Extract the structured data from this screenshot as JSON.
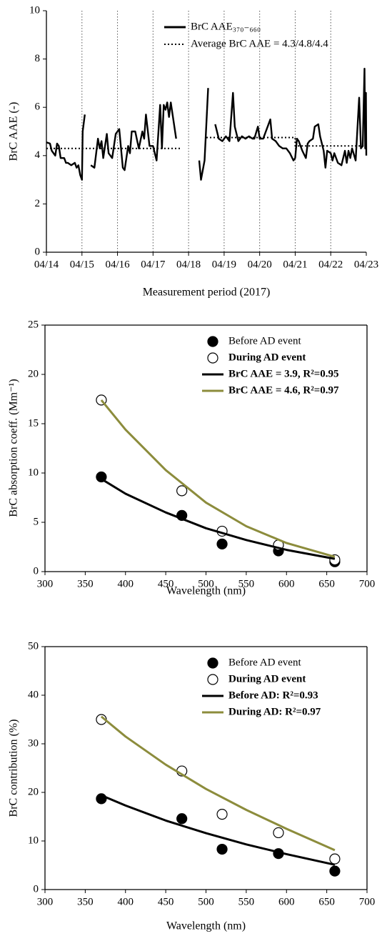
{
  "chart_data": [
    {
      "type": "line",
      "xlabel": "Measurement period (2017)",
      "ylabel": "BrC AAE (-)",
      "xlim": [
        0,
        9
      ],
      "ylim": [
        0,
        10
      ],
      "xticks": [
        {
          "value": 0,
          "label": "04/14"
        },
        {
          "value": 1,
          "label": "04/15"
        },
        {
          "value": 2,
          "label": "04/16"
        },
        {
          "value": 3,
          "label": "04/17"
        },
        {
          "value": 4,
          "label": "04/18"
        },
        {
          "value": 5,
          "label": "04/19"
        },
        {
          "value": 6,
          "label": "04/20"
        },
        {
          "value": 7,
          "label": "04/21"
        },
        {
          "value": 8,
          "label": "04/22"
        },
        {
          "value": 9,
          "label": "04/23"
        }
      ],
      "yticks": [
        0,
        2,
        4,
        6,
        8,
        10
      ],
      "vgrid": true,
      "box": false,
      "legend": "upper center",
      "series": [
        {
          "name": "BrC AAE₃₇₀₋₆₆₀",
          "color": "#000000",
          "kind": "line",
          "dash": "solid",
          "x": [
            0,
            0.1,
            0.15,
            0.25,
            0.3,
            0.35,
            0.4,
            0.5,
            0.55,
            0.6,
            0.7,
            0.8,
            0.85,
            0.9,
            0.95,
            1.0,
            1.02,
            1.08,
            null,
            1.25,
            1.35,
            1.45,
            1.5,
            1.55,
            1.6,
            1.7,
            1.75,
            1.85,
            1.95,
            2.05,
            2.1,
            2.15,
            2.2,
            2.3,
            2.35,
            2.4,
            2.5,
            2.6,
            2.7,
            2.75,
            2.8,
            2.9,
            3.0,
            3.1,
            3.2,
            3.25,
            3.3,
            3.35,
            3.4,
            3.45,
            3.5,
            3.55,
            3.65,
            null,
            4.3,
            4.35,
            4.45,
            4.55,
            null,
            4.75,
            4.85,
            4.95,
            5.05,
            5.1,
            5.15,
            5.25,
            5.3,
            5.4,
            5.5,
            5.6,
            5.7,
            5.8,
            5.85,
            5.95,
            6.0,
            6.1,
            6.2,
            6.3,
            6.35,
            6.45,
            6.55,
            6.65,
            6.75,
            6.85,
            6.95,
            7.0,
            7.05,
            7.1,
            7.2,
            7.3,
            7.35,
            7.4,
            7.5,
            7.55,
            7.65,
            7.7,
            7.8,
            7.85,
            7.9,
            8.0,
            8.05,
            8.1,
            8.2,
            8.3,
            8.4,
            8.45,
            8.5,
            8.55,
            8.6,
            8.7,
            8.8,
            8.85,
            8.9,
            8.95,
            8.97,
            8.99,
            9.0
          ],
          "values": [
            4.55,
            4.5,
            4.2,
            4.0,
            4.5,
            4.4,
            3.9,
            3.9,
            3.7,
            3.7,
            3.6,
            3.7,
            3.5,
            3.6,
            3.2,
            3.0,
            5.0,
            5.7,
            null,
            3.6,
            3.5,
            4.7,
            4.3,
            4.6,
            3.9,
            4.9,
            4.1,
            3.9,
            4.9,
            5.1,
            4.3,
            3.5,
            3.4,
            4.4,
            4.1,
            5.0,
            5.0,
            4.3,
            5.0,
            4.7,
            5.7,
            4.4,
            4.4,
            3.8,
            6.1,
            4.3,
            6.1,
            5.9,
            6.2,
            5.6,
            6.2,
            5.7,
            4.7,
            null,
            3.8,
            3.0,
            3.8,
            6.8,
            null,
            5.3,
            4.7,
            4.6,
            4.8,
            4.7,
            4.6,
            6.6,
            5.2,
            4.6,
            4.8,
            4.7,
            4.8,
            4.7,
            4.7,
            5.2,
            4.7,
            4.7,
            5.1,
            5.5,
            4.7,
            4.6,
            4.4,
            4.3,
            4.3,
            4.1,
            3.8,
            3.9,
            4.7,
            4.6,
            4.2,
            3.9,
            4.5,
            4.6,
            4.7,
            5.2,
            5.3,
            4.8,
            4.2,
            3.5,
            4.2,
            4.1,
            3.8,
            4.1,
            3.7,
            3.6,
            4.2,
            3.7,
            4.2,
            3.9,
            4.3,
            3.8,
            6.4,
            4.3,
            4.4,
            7.6,
            4.3,
            6.6,
            4.0
          ]
        },
        {
          "name": "Average BrC AAE = 4.3/4.8/4.4",
          "color": "#000000",
          "kind": "line",
          "dash": "dotted",
          "x": [
            0,
            3.8,
            null,
            4.5,
            7.0,
            7.0,
            9
          ],
          "values": [
            4.3,
            4.3,
            null,
            4.75,
            4.75,
            4.4,
            4.4
          ]
        }
      ]
    },
    {
      "type": "scatter",
      "xlabel": "Wavelength (nm)",
      "ylabel": "BrC absorption coeff. (Mm⁻¹)",
      "xlim": [
        300,
        700
      ],
      "ylim": [
        0,
        25
      ],
      "xticks": [
        300,
        350,
        400,
        450,
        500,
        550,
        600,
        650,
        700
      ],
      "yticks": [
        0,
        5,
        10,
        15,
        20,
        25
      ],
      "vgrid": false,
      "box": true,
      "legend": "upper right",
      "series": [
        {
          "name": "Before AD event",
          "color": "#000000",
          "kind": "marker",
          "fill": "filled",
          "x": [
            370,
            470,
            520,
            590,
            660
          ],
          "values": [
            9.6,
            5.7,
            2.8,
            2.1,
            1.0
          ]
        },
        {
          "name": "During AD event",
          "color": "#8c8c3c",
          "kind": "marker",
          "fill": "open",
          "x": [
            370,
            470,
            520,
            590,
            660
          ],
          "values": [
            17.4,
            8.2,
            4.1,
            2.7,
            1.2
          ]
        },
        {
          "name": "BrC AAE = 3.9, R²=0.95",
          "color": "#000000",
          "kind": "line",
          "dash": "solid",
          "x": [
            370,
            400,
            450,
            500,
            550,
            600,
            660
          ],
          "values": [
            9.4,
            7.9,
            6.0,
            4.4,
            3.2,
            2.2,
            1.3
          ]
        },
        {
          "name": "BrC AAE = 4.6, R²=0.97",
          "color": "#8c8c3c",
          "kind": "line",
          "dash": "solid",
          "x": [
            370,
            400,
            450,
            500,
            550,
            600,
            660
          ],
          "values": [
            17.4,
            14.4,
            10.3,
            7.0,
            4.6,
            2.9,
            1.5
          ]
        }
      ]
    },
    {
      "type": "scatter",
      "xlabel": "Wavelength (nm)",
      "ylabel": "BrC contribution (%)",
      "xlim": [
        300,
        700
      ],
      "ylim": [
        0,
        50
      ],
      "xticks": [
        300,
        350,
        400,
        450,
        500,
        550,
        600,
        650,
        700
      ],
      "yticks": [
        0,
        10,
        20,
        30,
        40,
        50
      ],
      "vgrid": false,
      "box": true,
      "legend": "upper right",
      "series": [
        {
          "name": "Before AD event",
          "color": "#000000",
          "kind": "marker",
          "fill": "filled",
          "x": [
            370,
            470,
            520,
            590,
            660
          ],
          "values": [
            18.7,
            14.6,
            8.3,
            7.4,
            3.8
          ]
        },
        {
          "name": "During AD event",
          "color": "#8c8c3c",
          "kind": "marker",
          "fill": "open",
          "x": [
            370,
            470,
            520,
            590,
            660
          ],
          "values": [
            35,
            24.4,
            15.5,
            11.7,
            6.3
          ]
        },
        {
          "name": "Before AD: R²=0.93",
          "color": "#000000",
          "kind": "line",
          "dash": "solid",
          "x": [
            370,
            400,
            450,
            500,
            550,
            600,
            660
          ],
          "values": [
            19.4,
            17.3,
            14.2,
            11.6,
            9.3,
            7.3,
            5.1
          ]
        },
        {
          "name": "During AD: R²=0.97",
          "color": "#8c8c3c",
          "kind": "line",
          "dash": "solid",
          "x": [
            370,
            400,
            450,
            500,
            550,
            600,
            660
          ],
          "values": [
            35.6,
            31.5,
            25.7,
            20.7,
            16.4,
            12.5,
            8.1
          ]
        }
      ]
    }
  ]
}
